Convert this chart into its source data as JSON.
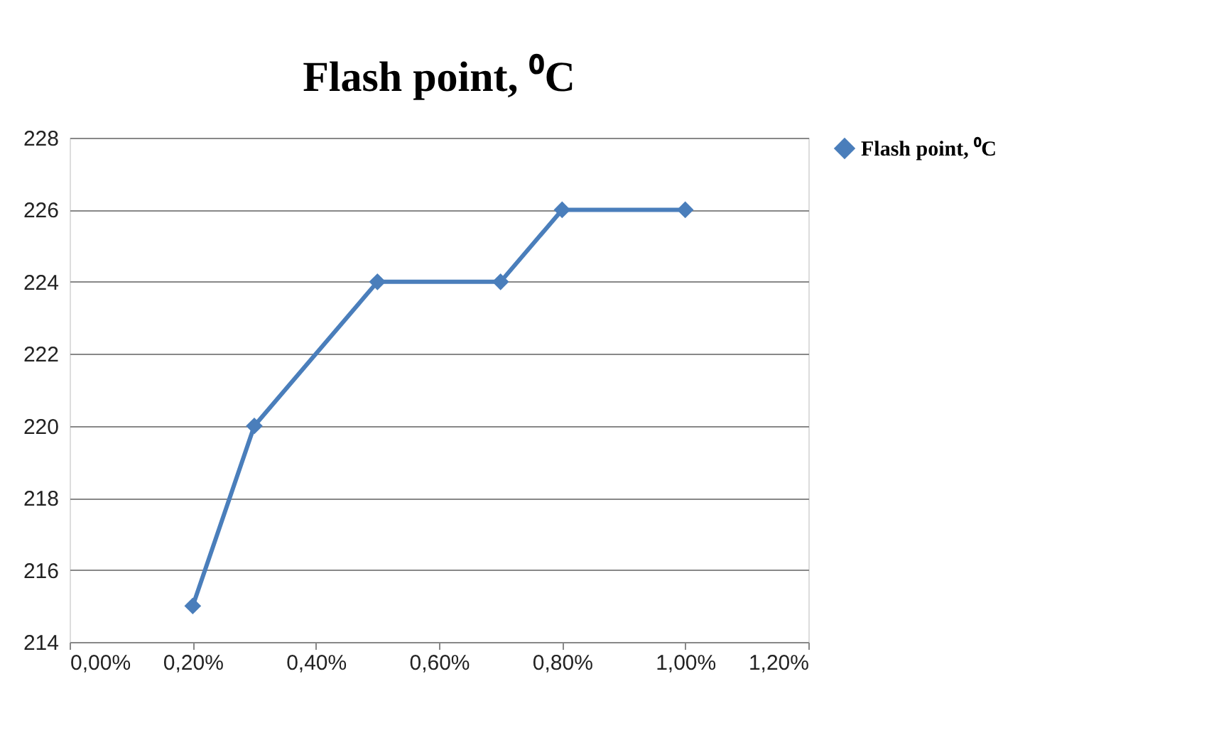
{
  "chart_data": {
    "type": "line",
    "title": "Flash point, ⁰C",
    "x": [
      0.2,
      0.3,
      0.5,
      0.7,
      0.8,
      1.0
    ],
    "series": [
      {
        "name": "Flash point, ⁰C",
        "color": "#4a7ebb",
        "values": [
          215,
          220,
          224,
          224,
          226,
          226
        ]
      }
    ],
    "xlim": [
      0,
      1.2
    ],
    "xticks": [
      {
        "value": 0,
        "label": "0,00%"
      },
      {
        "value": 0.2,
        "label": "0,20%"
      },
      {
        "value": 0.4,
        "label": "0,40%"
      },
      {
        "value": 0.6,
        "label": "0,60%"
      },
      {
        "value": 0.8,
        "label": "0,80%"
      },
      {
        "value": 1.0,
        "label": "1,00%"
      },
      {
        "value": 1.2,
        "label": "1,20%"
      }
    ],
    "ylim": [
      214,
      228
    ],
    "yticks": [
      214,
      216,
      218,
      220,
      222,
      224,
      226,
      228
    ],
    "grid": "y",
    "legend": "right",
    "marker": "diamond",
    "line_style": "solid"
  }
}
